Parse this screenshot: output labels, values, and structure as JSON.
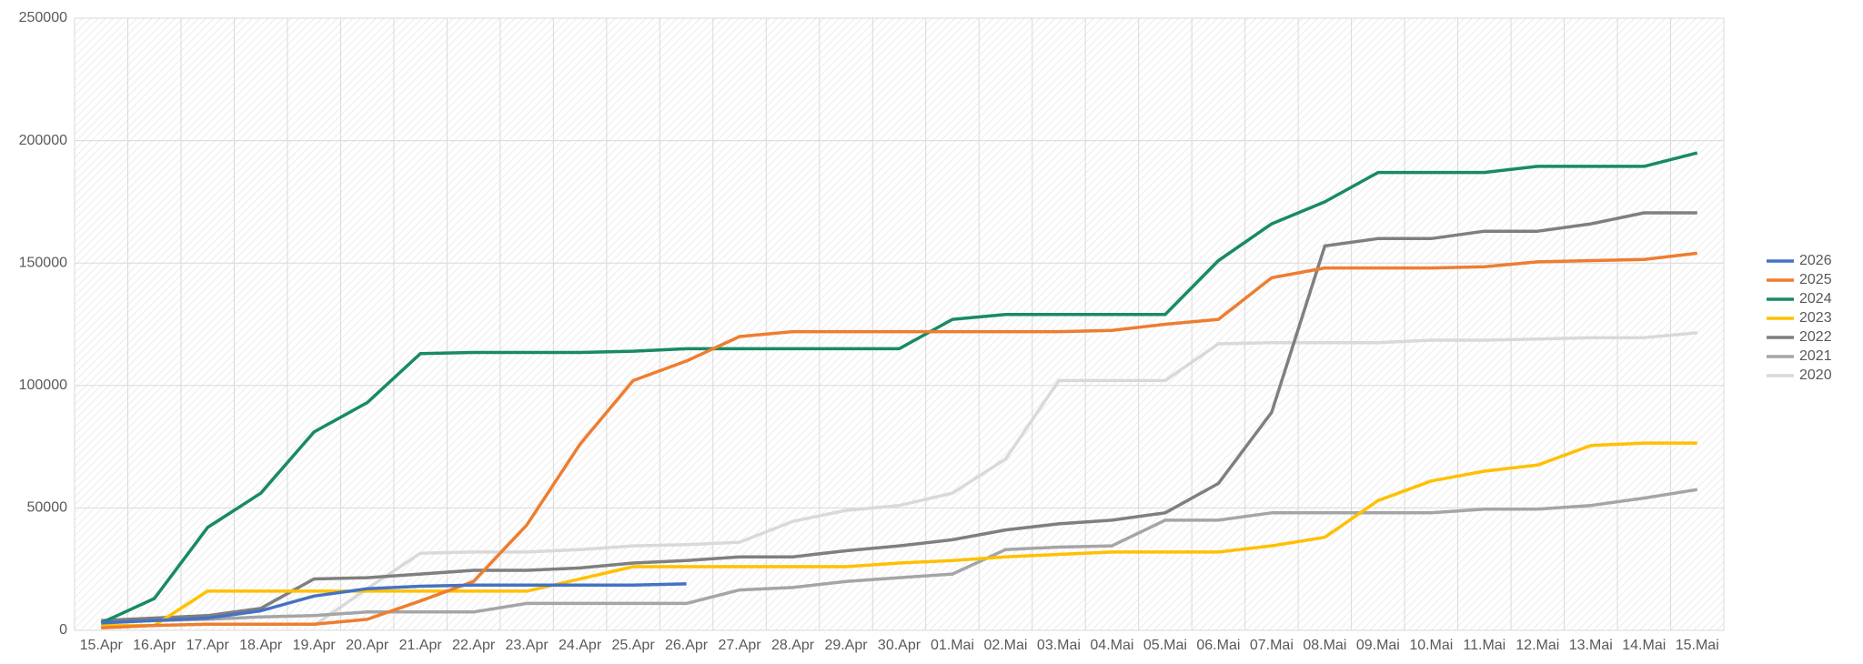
{
  "chart_data": {
    "type": "line",
    "categories": [
      "15.Apr",
      "16.Apr",
      "17.Apr",
      "18.Apr",
      "19.Apr",
      "20.Apr",
      "21.Apr",
      "22.Apr",
      "23.Apr",
      "24.Apr",
      "25.Apr",
      "26.Apr",
      "27.Apr",
      "28.Apr",
      "29.Apr",
      "30.Apr",
      "01.Mai",
      "02.Mai",
      "03.Mai",
      "04.Mai",
      "05.Mai",
      "06.Mai",
      "07.Mai",
      "08.Mai",
      "09.Mai",
      "10.Mai",
      "11.Mai",
      "12.Mai",
      "13.Mai",
      "14.Mai",
      "15.Mai"
    ],
    "series": [
      {
        "name": "2026",
        "color": "#4472c4",
        "values": [
          3000,
          4000,
          5000,
          8000,
          14000,
          17000,
          18000,
          18500,
          18500,
          18500,
          18500,
          19000,
          null,
          null,
          null,
          null,
          null,
          null,
          null,
          null,
          null,
          null,
          null,
          null,
          null,
          null,
          null,
          null,
          null,
          null,
          null
        ]
      },
      {
        "name": "2025",
        "color": "#ed7d31",
        "values": [
          1000,
          2000,
          2500,
          2500,
          2500,
          4500,
          12000,
          20000,
          43000,
          76000,
          102000,
          110000,
          120000,
          122000,
          122000,
          122000,
          122000,
          122000,
          122000,
          122500,
          125000,
          127000,
          144000,
          148000,
          148000,
          148000,
          148500,
          150500,
          151000,
          151500,
          154000
        ]
      },
      {
        "name": "2024",
        "color": "#188a64",
        "values": [
          3000,
          13000,
          42000,
          56000,
          81000,
          93000,
          113000,
          113500,
          113500,
          113500,
          114000,
          115000,
          115000,
          115000,
          115000,
          115000,
          127000,
          129000,
          129000,
          129000,
          129000,
          151000,
          166000,
          175000,
          187000,
          187000,
          187000,
          189500,
          189500,
          189500,
          195000
        ]
      },
      {
        "name": "2023",
        "color": "#ffc000",
        "values": [
          2000,
          2000,
          16000,
          16000,
          16000,
          16000,
          16000,
          16000,
          16000,
          21000,
          26000,
          26000,
          26000,
          26000,
          26000,
          27500,
          28500,
          30000,
          31000,
          32000,
          32000,
          32000,
          34500,
          38000,
          53000,
          61000,
          65000,
          67500,
          75500,
          76500,
          76500
        ]
      },
      {
        "name": "2022",
        "color": "#7f7f7f",
        "values": [
          4000,
          5000,
          6000,
          9000,
          21000,
          21500,
          23000,
          24500,
          24500,
          25500,
          27500,
          28500,
          30000,
          30000,
          32500,
          34500,
          37000,
          41000,
          43500,
          45000,
          48000,
          60000,
          89000,
          157000,
          160000,
          160000,
          163000,
          163000,
          166000,
          170500,
          170500
        ]
      },
      {
        "name": "2021",
        "color": "#a5a5a5",
        "values": [
          4000,
          4000,
          4500,
          5500,
          6000,
          7500,
          7500,
          7500,
          11000,
          11000,
          11000,
          11000,
          16500,
          17500,
          20000,
          21500,
          23000,
          33000,
          34000,
          34500,
          45000,
          45000,
          48000,
          48000,
          48000,
          48000,
          49500,
          49500,
          51000,
          54000,
          57500
        ]
      },
      {
        "name": "2020",
        "color": "#d9d9d9",
        "values": [
          null,
          null,
          null,
          null,
          2000,
          17000,
          31500,
          32000,
          32000,
          33000,
          34500,
          35000,
          36000,
          44500,
          49000,
          51000,
          56000,
          70000,
          102000,
          102000,
          102000,
          117000,
          117500,
          117500,
          117500,
          118500,
          118500,
          119000,
          119500,
          119500,
          121500
        ]
      }
    ],
    "ylim": [
      0,
      250000
    ],
    "yticks": [
      0,
      50000,
      100000,
      150000,
      200000,
      250000
    ],
    "grid": true,
    "legend": "right"
  }
}
